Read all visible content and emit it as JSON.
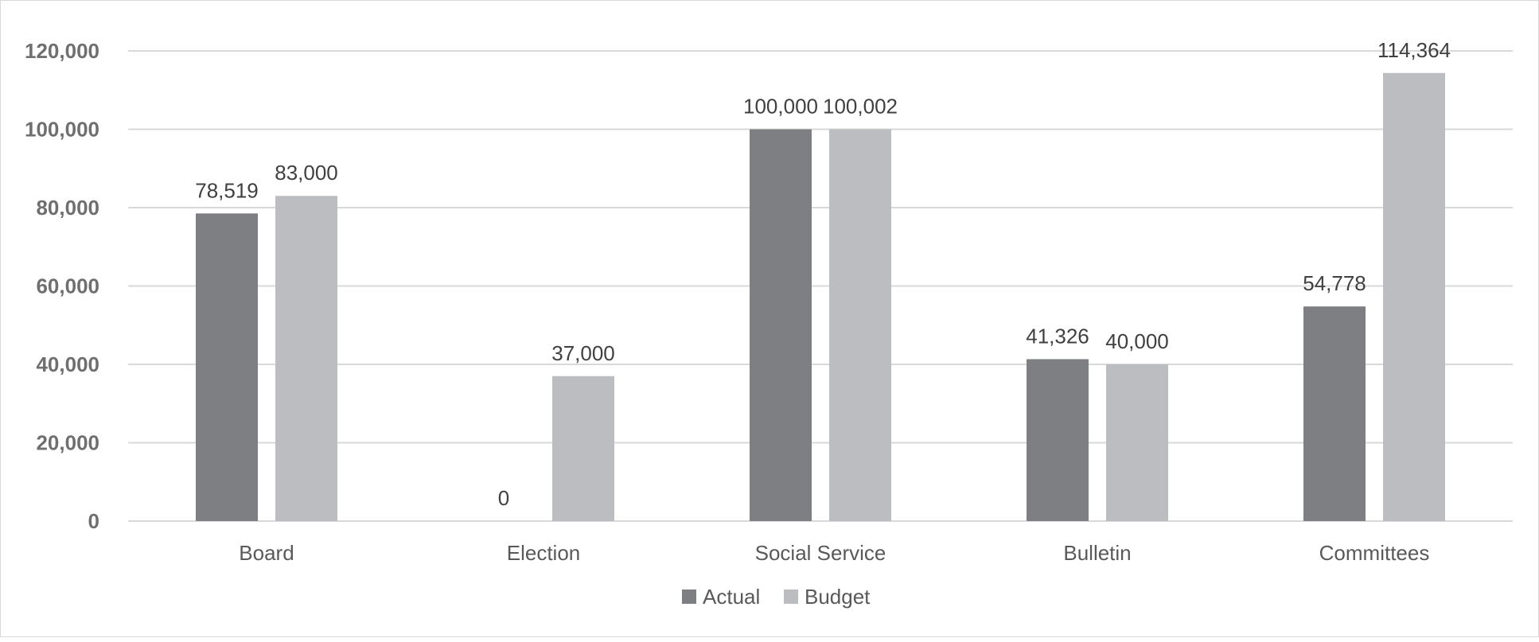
{
  "chart_data": {
    "type": "bar",
    "title": "",
    "xlabel": "",
    "ylabel": "",
    "categories": [
      "Board",
      "Election",
      "Social Service",
      "Bulletin",
      "Committees"
    ],
    "series": [
      {
        "name": "Actual",
        "color": "#7e7f83",
        "values": [
          78519,
          0,
          100000,
          41326,
          54778
        ],
        "labels": [
          "78,519",
          "0",
          "100,000",
          "41,326",
          "54,778"
        ]
      },
      {
        "name": "Budget",
        "color": "#bcbdc0",
        "values": [
          83000,
          37000,
          100002,
          40000,
          114364
        ],
        "labels": [
          "83,000",
          "37,000",
          "100,002",
          "40,000",
          "114,364"
        ]
      }
    ],
    "ylim": [
      0,
      120000
    ],
    "yticks": [
      0,
      20000,
      40000,
      60000,
      80000,
      100000,
      120000
    ],
    "ytick_labels": [
      "0",
      "20,000",
      "40,000",
      "60,000",
      "80,000",
      "100,000",
      "120,000"
    ],
    "grid": true,
    "legend_position": "bottom-center"
  }
}
